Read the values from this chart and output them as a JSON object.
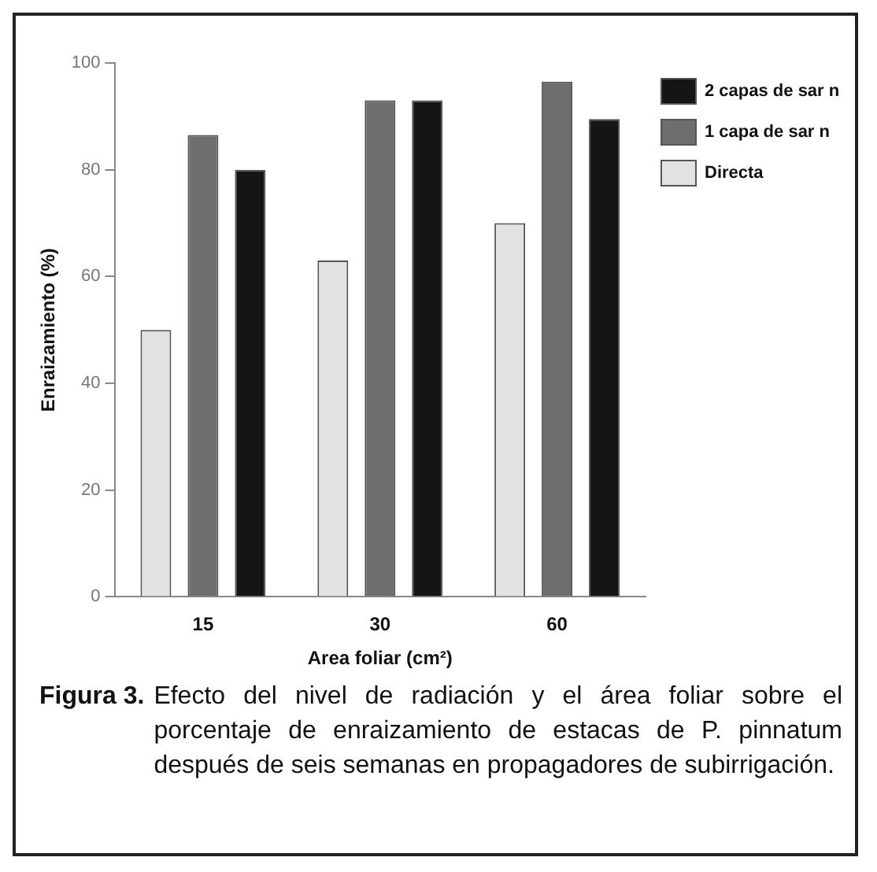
{
  "chart_data": {
    "type": "bar",
    "categories": [
      "15",
      "30",
      "60"
    ],
    "xlabel": "Area foliar (cm²)",
    "ylabel": "Enraizamiento (%)",
    "series": [
      {
        "name": "Directa",
        "color": "#e2e2e2",
        "values": [
          50,
          63,
          70
        ]
      },
      {
        "name": "1 capa de sar n",
        "color": "#6e6e6e",
        "values": [
          86.5,
          93,
          96.5
        ]
      },
      {
        "name": "2 capas de sar n",
        "color": "#151515",
        "values": [
          80,
          93,
          89.5
        ]
      }
    ],
    "ylim": [
      0,
      100
    ],
    "yticks": [
      0,
      20,
      40,
      60,
      80,
      100
    ],
    "grid": false,
    "legend": "right",
    "annotations": [
      "Figura 3.",
      "Efecto del nivel de radiación y el área foliar sobre el porcentaje de enraizamiento de estacas de P. pinnatum después de seis semanas en propagadores de subirrigación."
    ]
  }
}
